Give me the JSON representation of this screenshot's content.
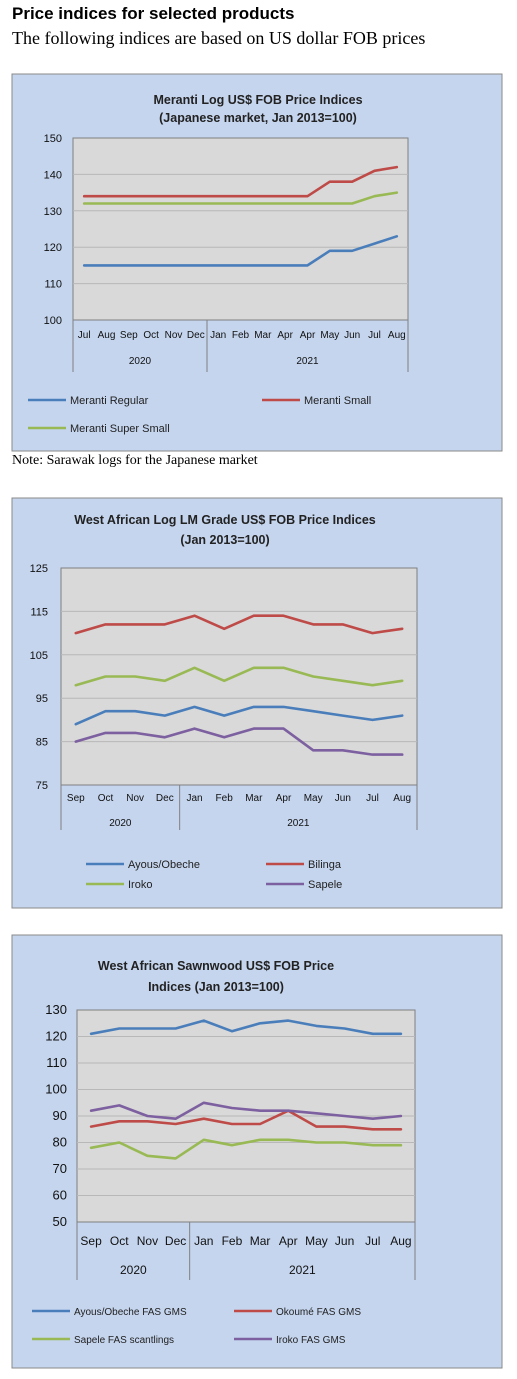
{
  "page": {
    "heading": "Price indices for selected products",
    "subheading": "The following indices are based on US dollar FOB prices",
    "note": "Note: Sarawak logs for the Japanese market"
  },
  "colors": {
    "panel_bg": "#c5d5ee",
    "plot_bg": "#d9d9d9",
    "grid": "#b8b8b8"
  },
  "chart_data": [
    {
      "type": "line",
      "title": "Meranti Log US$ FOB Price Indices",
      "subtitle": "(Japanese market, Jan 2013=100)",
      "categories": [
        "Jul",
        "Aug",
        "Sep",
        "Oct",
        "Nov",
        "Dec",
        "Jan",
        "Feb",
        "Mar",
        "Apr",
        "Apr",
        "May",
        "Jun",
        "Jul",
        "Aug"
      ],
      "groups": [
        {
          "label": "2020",
          "count": 6
        },
        {
          "label": "2021",
          "count": 9
        }
      ],
      "ylim": [
        100,
        150
      ],
      "ystep": 10,
      "legend_position": "bottom",
      "legend_columns": 2,
      "series": [
        {
          "name": "Meranti Regular",
          "color": "#4a7ebb",
          "values": [
            115,
            115,
            115,
            115,
            115,
            115,
            115,
            115,
            115,
            115,
            115,
            119,
            119,
            121,
            123
          ]
        },
        {
          "name": "Meranti Small",
          "color": "#be4b48",
          "values": [
            134,
            134,
            134,
            134,
            134,
            134,
            134,
            134,
            134,
            134,
            134,
            138,
            138,
            141,
            142
          ]
        },
        {
          "name": "Meranti Super Small",
          "color": "#98b954",
          "values": [
            132,
            132,
            132,
            132,
            132,
            132,
            132,
            132,
            132,
            132,
            132,
            132,
            132,
            134,
            135
          ]
        }
      ]
    },
    {
      "type": "line",
      "title": "West African Log LM Grade US$ FOB Price Indices",
      "subtitle": "(Jan 2013=100)",
      "categories": [
        "Sep",
        "Oct",
        "Nov",
        "Dec",
        "Jan",
        "Feb",
        "Mar",
        "Apr",
        "May",
        "Jun",
        "Jul",
        "Aug"
      ],
      "groups": [
        {
          "label": "2020",
          "count": 4
        },
        {
          "label": "2021",
          "count": 8
        }
      ],
      "ylim": [
        75,
        125
      ],
      "ystep": 10,
      "legend_position": "bottom",
      "legend_columns": 2,
      "series": [
        {
          "name": "Ayous/Obeche",
          "color": "#4a7ebb",
          "values": [
            89,
            92,
            92,
            91,
            93,
            91,
            93,
            93,
            92,
            91,
            90,
            91
          ]
        },
        {
          "name": "Bilinga",
          "color": "#be4b48",
          "values": [
            110,
            112,
            112,
            112,
            114,
            111,
            114,
            114,
            112,
            112,
            110,
            111
          ]
        },
        {
          "name": "Iroko",
          "color": "#98b954",
          "values": [
            98,
            100,
            100,
            99,
            102,
            99,
            102,
            102,
            100,
            99,
            98,
            99
          ]
        },
        {
          "name": "Sapele",
          "color": "#7d60a0",
          "values": [
            85,
            87,
            87,
            86,
            88,
            86,
            88,
            88,
            83,
            83,
            82,
            82
          ]
        }
      ]
    },
    {
      "type": "line",
      "title": "West African Sawnwood US$ FOB Price",
      "subtitle": "Indices (Jan 2013=100)",
      "categories": [
        "Sep",
        "Oct",
        "Nov",
        "Dec",
        "Jan",
        "Feb",
        "Mar",
        "Apr",
        "May",
        "Jun",
        "Jul",
        "Aug"
      ],
      "groups": [
        {
          "label": "2020",
          "count": 4
        },
        {
          "label": "2021",
          "count": 8
        }
      ],
      "ylim": [
        50,
        130
      ],
      "ystep": 10,
      "legend_position": "bottom",
      "legend_columns": 2,
      "series": [
        {
          "name": "Ayous/Obeche FAS GMS",
          "color": "#4a7ebb",
          "values": [
            121,
            123,
            123,
            123,
            126,
            122,
            125,
            126,
            124,
            123,
            121,
            121
          ]
        },
        {
          "name": "Okoumé FAS GMS",
          "color": "#be4b48",
          "values": [
            86,
            88,
            88,
            87,
            89,
            87,
            87,
            92,
            86,
            86,
            85,
            85
          ]
        },
        {
          "name": "Sapele FAS scantlings",
          "color": "#98b954",
          "values": [
            78,
            80,
            75,
            74,
            81,
            79,
            81,
            81,
            80,
            80,
            79,
            79
          ]
        },
        {
          "name": "Iroko FAS GMS",
          "color": "#7d60a0",
          "values": [
            92,
            94,
            90,
            89,
            95,
            93,
            92,
            92,
            91,
            90,
            89,
            90
          ]
        }
      ]
    }
  ]
}
